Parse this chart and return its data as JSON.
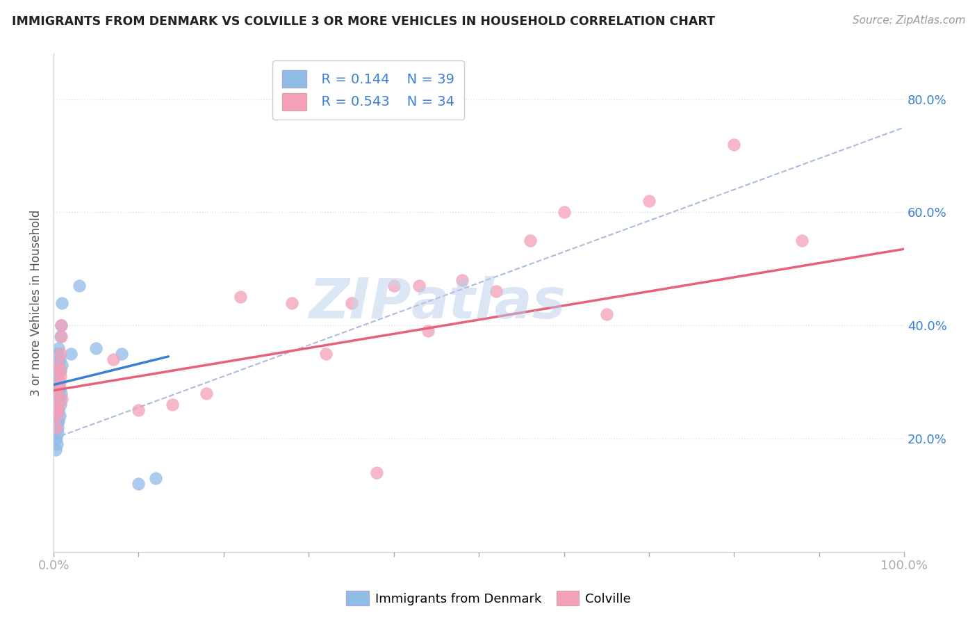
{
  "title": "IMMIGRANTS FROM DENMARK VS COLVILLE 3 OR MORE VEHICLES IN HOUSEHOLD CORRELATION CHART",
  "source": "Source: ZipAtlas.com",
  "ylabel": "3 or more Vehicles in Household",
  "xlim": [
    0.0,
    1.0
  ],
  "ylim": [
    0.0,
    0.88
  ],
  "yticks": [
    0.0,
    0.2,
    0.4,
    0.6,
    0.8
  ],
  "ytick_labels": [
    "",
    "20.0%",
    "40.0%",
    "60.0%",
    "80.0%"
  ],
  "legend_r_blue": "R = 0.144",
  "legend_n_blue": "N = 39",
  "legend_r_pink": "R = 0.543",
  "legend_n_pink": "N = 34",
  "blue_color": "#90bce8",
  "pink_color": "#f4a0b8",
  "blue_line_color": "#3a7fd5",
  "pink_line_color": "#e8607a",
  "dashed_line_color": "#aabbdd",
  "watermark_color": "#c5d8f0",
  "background_color": "#ffffff",
  "grid_color": "#e0e0e0",
  "blue_scatter_x": [
    0.002,
    0.003,
    0.003,
    0.003,
    0.004,
    0.004,
    0.004,
    0.005,
    0.005,
    0.005,
    0.005,
    0.005,
    0.006,
    0.006,
    0.006,
    0.006,
    0.007,
    0.007,
    0.007,
    0.008,
    0.008,
    0.008,
    0.009,
    0.009,
    0.01,
    0.01,
    0.002,
    0.003,
    0.004,
    0.005,
    0.005,
    0.006,
    0.007,
    0.02,
    0.05,
    0.08,
    0.03,
    0.1,
    0.12
  ],
  "blue_scatter_y": [
    0.28,
    0.33,
    0.22,
    0.25,
    0.26,
    0.31,
    0.24,
    0.29,
    0.35,
    0.27,
    0.3,
    0.23,
    0.32,
    0.28,
    0.36,
    0.25,
    0.34,
    0.29,
    0.27,
    0.38,
    0.32,
    0.26,
    0.4,
    0.28,
    0.44,
    0.33,
    0.18,
    0.2,
    0.19,
    0.22,
    0.21,
    0.23,
    0.24,
    0.35,
    0.36,
    0.35,
    0.47,
    0.12,
    0.13
  ],
  "pink_scatter_x": [
    0.003,
    0.005,
    0.006,
    0.007,
    0.008,
    0.009,
    0.01,
    0.003,
    0.005,
    0.007,
    0.009,
    0.006,
    0.004,
    0.008,
    0.07,
    0.1,
    0.14,
    0.18,
    0.22,
    0.32,
    0.4,
    0.43,
    0.48,
    0.52,
    0.56,
    0.6,
    0.65,
    0.7,
    0.8,
    0.88,
    0.28,
    0.35,
    0.44,
    0.38
  ],
  "pink_scatter_y": [
    0.28,
    0.25,
    0.33,
    0.3,
    0.35,
    0.4,
    0.27,
    0.22,
    0.29,
    0.32,
    0.38,
    0.26,
    0.24,
    0.31,
    0.34,
    0.25,
    0.26,
    0.28,
    0.45,
    0.35,
    0.47,
    0.47,
    0.48,
    0.46,
    0.55,
    0.6,
    0.42,
    0.62,
    0.72,
    0.55,
    0.44,
    0.44,
    0.39,
    0.14
  ],
  "blue_line_x0": 0.0,
  "blue_line_x1": 0.135,
  "blue_line_y0": 0.295,
  "blue_line_y1": 0.345,
  "pink_line_x0": 0.0,
  "pink_line_x1": 1.0,
  "pink_line_y0": 0.285,
  "pink_line_y1": 0.535,
  "dash_line_x0": 0.0,
  "dash_line_x1": 1.0,
  "dash_line_y0": 0.2,
  "dash_line_y1": 0.75
}
